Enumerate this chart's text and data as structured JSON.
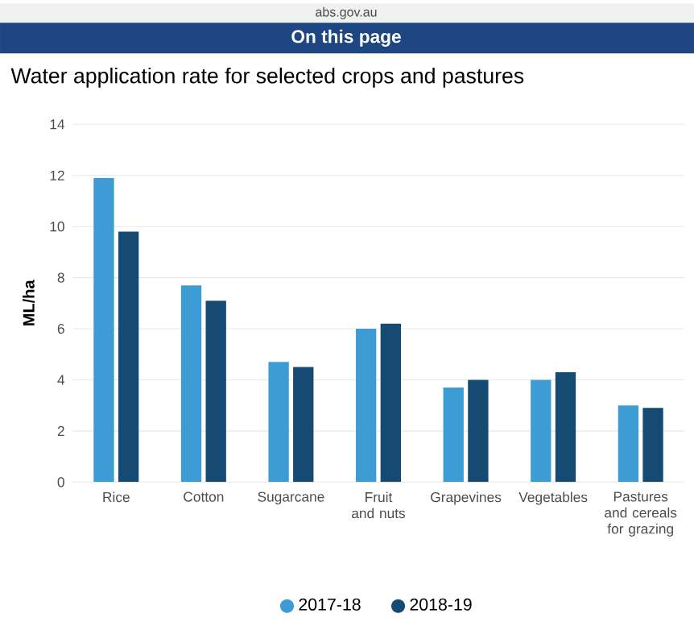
{
  "chart_data": {
    "type": "bar",
    "title": "Water application rate for selected crops and pastures",
    "annotations": [
      "abs.gov.au",
      "On this page"
    ],
    "ylabel": "ML/ha",
    "categories": [
      "Rice",
      "Cotton",
      "Sugarcane",
      "Fruit and nuts",
      "Grapevines",
      "Vegetables",
      "Pastures and cereals for grazing"
    ],
    "series": [
      {
        "name": "2017-18",
        "color": "#3d9cd3",
        "values": [
          11.9,
          7.7,
          4.7,
          6.0,
          3.7,
          4.0,
          3.0
        ]
      },
      {
        "name": "2018-19",
        "color": "#154a73",
        "values": [
          9.8,
          7.1,
          4.5,
          6.2,
          4.0,
          4.3,
          2.9
        ]
      }
    ],
    "ylim": [
      0,
      14
    ],
    "yticks": [
      0,
      2,
      4,
      6,
      8,
      10,
      12,
      14
    ],
    "grid": "y",
    "legend": "bottom"
  }
}
